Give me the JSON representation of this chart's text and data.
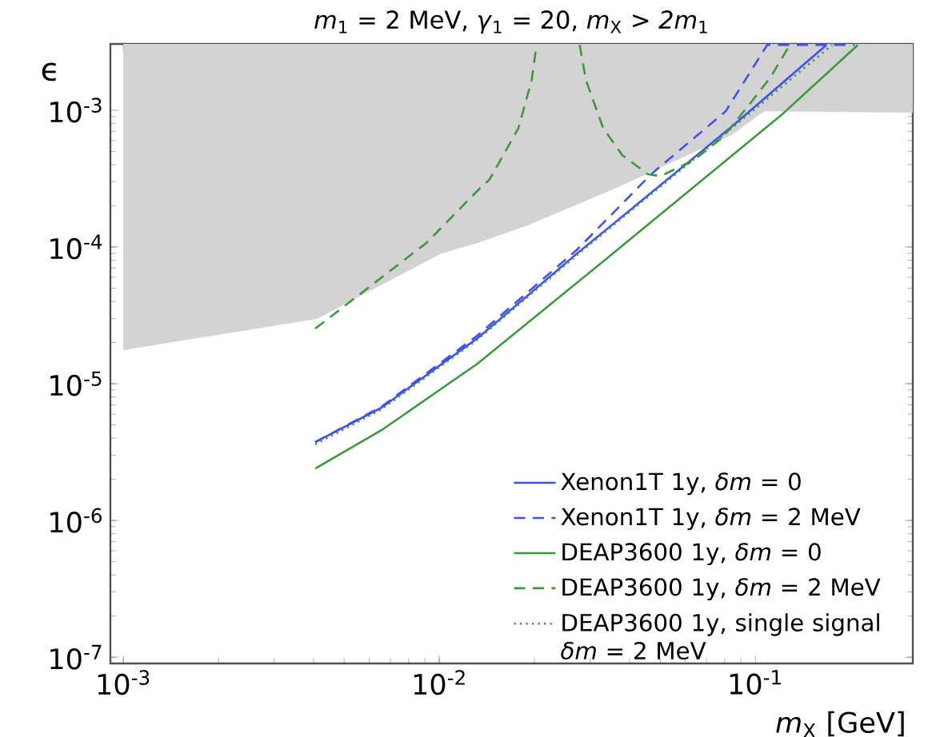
{
  "chart_data": {
    "type": "line",
    "title": "*m*$_{1}$ = 2 MeV, *γ*$_{1}$ = 20, *m*$_{X}$ > *2m*$_{1}$",
    "xlabel": "*m*$_{X}$ [GeV]",
    "ylabel": "ϵ",
    "log": "xy",
    "grid": false,
    "legend": "bottom right",
    "xlim": [
      0.00091,
      0.315
    ],
    "ylim": [
      9e-08,
      0.00305
    ],
    "xticks": [
      {
        "value": 0.001,
        "label": "10$^{-3}$"
      },
      {
        "value": 0.01,
        "label": "10$^{-2}$"
      },
      {
        "value": 0.1,
        "label": "10$^{-1}$"
      }
    ],
    "yticks": [
      {
        "value": 1e-07,
        "label": "10$^{-7}$"
      },
      {
        "value": 1e-06,
        "label": "10$^{-6}$"
      },
      {
        "value": 1e-05,
        "label": "10$^{-5}$"
      },
      {
        "value": 0.0001,
        "label": "10$^{-4}$"
      },
      {
        "value": 0.001,
        "label": "10$^{-3}$"
      }
    ],
    "series": [
      {
        "type": "area",
        "color": "#d3d3d3",
        "x": [
          0.001,
          0.0041,
          0.0101,
          0.0132,
          0.0191,
          0.037,
          0.0525,
          0.0843,
          0.1067,
          0.315
        ],
        "values": [
          null,
          null,
          null,
          null,
          null,
          null,
          null,
          null,
          null,
          null
        ],
        "lower": [
          1.76e-05,
          2.98e-05,
          8.9e-05,
          0.000107,
          0.000144,
          0.000275,
          0.0004,
          0.00066,
          0.00098,
          0.00096
        ],
        "upper": [
          0.00305,
          0.00305,
          0.00305,
          0.00305,
          0.00305,
          0.00305,
          0.00305,
          0.00305,
          0.00305,
          0.00305
        ]
      },
      {
        "name": "Xenon1T 1y, *δm* = 0",
        "color": "#4050f5",
        "line_style": "solid",
        "x": [
          0.00405,
          0.00656,
          0.0132,
          0.0272,
          0.0843,
          0.168
        ],
        "values": [
          3.74e-06,
          6.68e-06,
          2.15e-05,
          8.9e-05,
          0.00076,
          0.003
        ]
      },
      {
        "name": "Xenon1T 1y, *δm* = 2 MeV",
        "color": "#4050f5",
        "line_style": "dashed",
        "x": [
          0.00405,
          0.00656,
          0.0132,
          0.0272,
          0.0468,
          0.0805,
          0.109,
          0.206
        ],
        "values": [
          3.74e-06,
          6.8e-06,
          2.25e-05,
          9.5e-05,
          0.00034,
          0.00098,
          0.003,
          0.003
        ]
      },
      {
        "name": "DEAP3600 1y, *δm* = 0",
        "color": "#3a9a3a",
        "line_style": "solid",
        "x": [
          0.00405,
          0.00656,
          0.0132,
          0.0353,
          0.1227,
          0.211
        ],
        "values": [
          2.4e-06,
          4.57e-06,
          1.4e-05,
          8.9e-05,
          0.00095,
          0.003
        ]
      },
      {
        "name": "DEAP3600 1y, *δm* = 2 MeV",
        "color": "#3a9a3a",
        "line_style": "dashed",
        "x": [
          0.00405,
          0.0091,
          0.0134,
          0.0144,
          0.0178,
          0.0196,
          0.0203,
          0.024,
          0.0278,
          0.0291,
          0.033,
          0.0379,
          0.0457,
          0.0501,
          0.0638,
          0.0787,
          0.0948,
          0.1117,
          0.1285
        ],
        "values": [
          2.53e-05,
          0.000107,
          0.000267,
          0.00031,
          0.00074,
          0.00166,
          0.003,
          null,
          0.003,
          0.00166,
          0.00074,
          0.00047,
          0.00034,
          0.00033,
          0.00043,
          0.00063,
          0.00107,
          0.00174,
          0.003
        ]
      },
      {
        "name": "DEAP3600 1y, single signal *δm* = 2 MeV",
        "color": "#3a9a3a",
        "line_style": "dotted",
        "x": [
          0.00405,
          0.00656,
          0.0132,
          0.0272,
          0.0843,
          0.175
        ],
        "values": [
          3.6e-06,
          6.5e-06,
          2.1e-05,
          8.7e-05,
          0.00074,
          0.003
        ]
      }
    ]
  }
}
